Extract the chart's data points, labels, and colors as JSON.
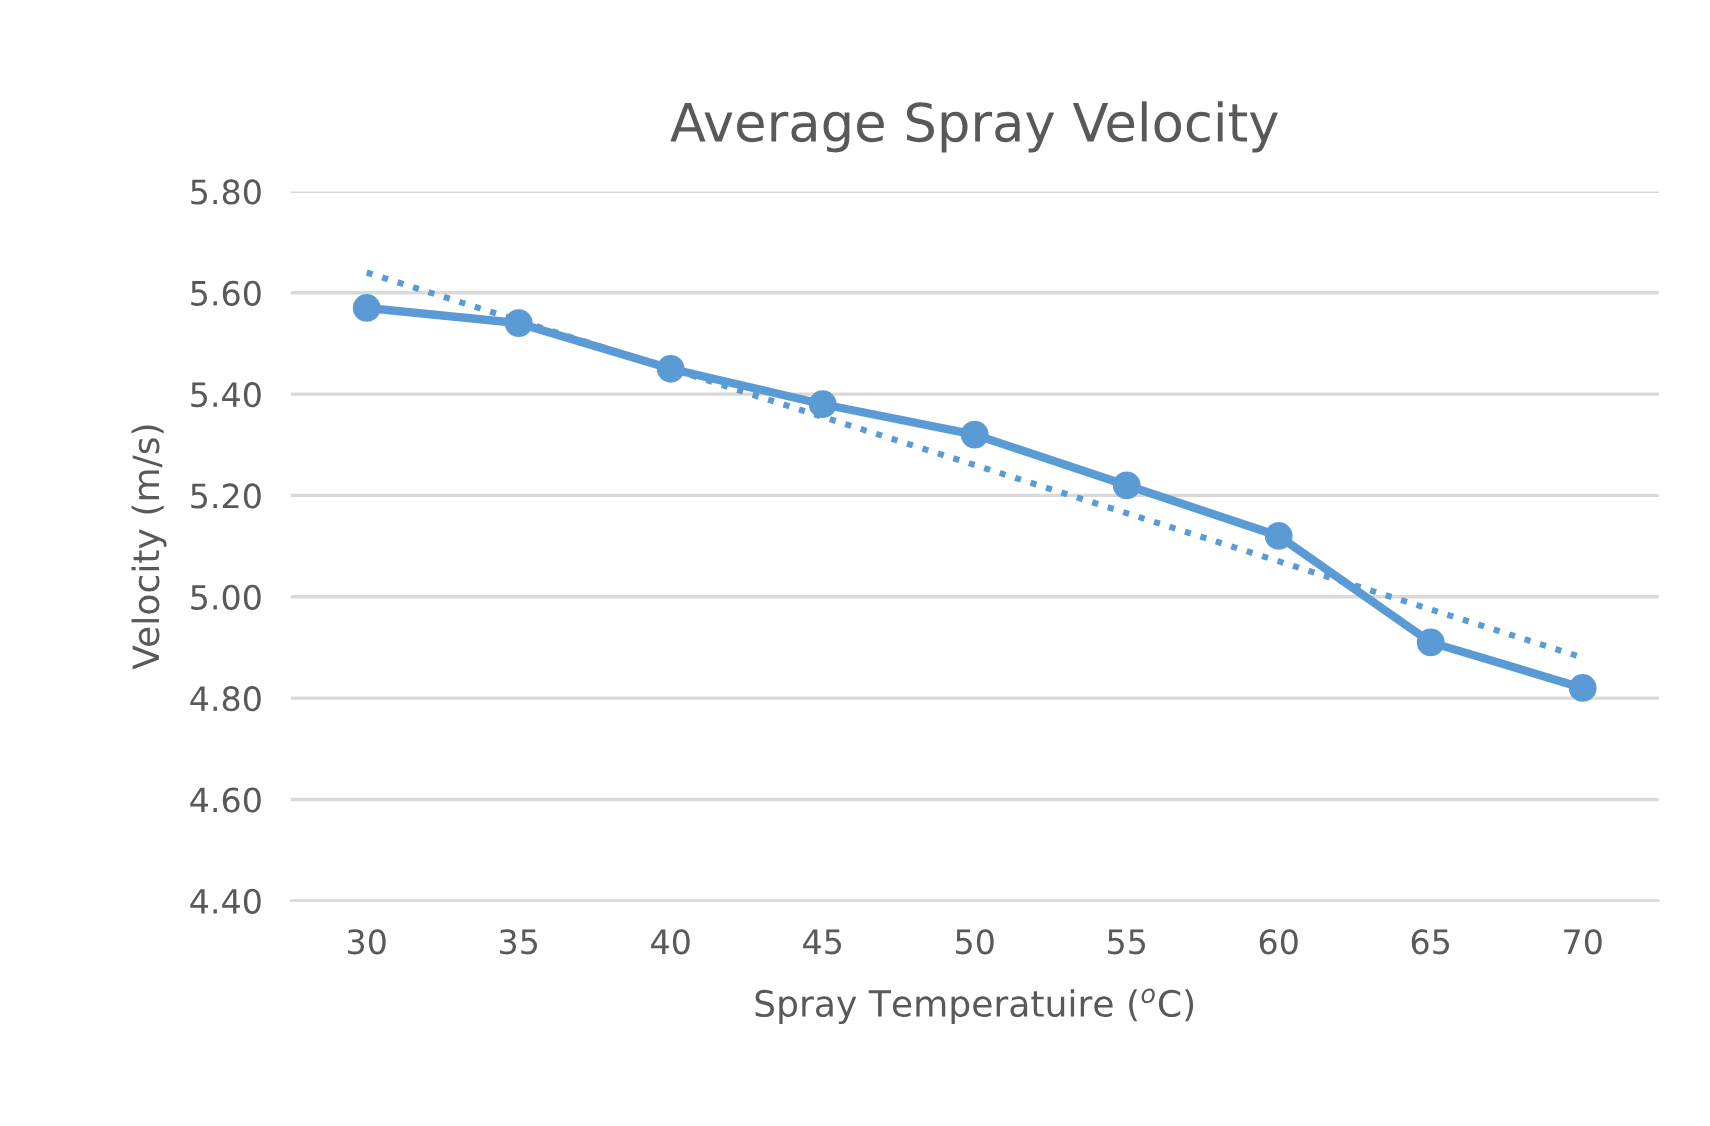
{
  "chart_data": {
    "type": "line",
    "title": "Average Spray Velocity",
    "xlabel": "Spray Temperatuire ($^{o}$C)",
    "ylabel": "Velocity (m/s)",
    "categories": [
      "30",
      "35",
      "40",
      "45",
      "50",
      "55",
      "60",
      "65",
      "70"
    ],
    "series": [
      {
        "color": "#5b9bd5",
        "marker": "circle",
        "line_style": "solid",
        "values": [
          5.57,
          5.54,
          5.45,
          5.38,
          5.32,
          5.22,
          5.12,
          4.91,
          4.82
        ]
      },
      {
        "color": "#5b9bd5",
        "marker": "none",
        "line_style": "dotted",
        "x": [
          "30",
          "70"
        ],
        "values": [
          5.64,
          4.88
        ]
      }
    ],
    "ylim": [
      4.4,
      5.8
    ],
    "yticks": [
      {
        "value": 4.4,
        "label": "4.40"
      },
      {
        "value": 4.6,
        "label": "4.60"
      },
      {
        "value": 4.8,
        "label": "4.80"
      },
      {
        "value": 5.0,
        "label": "5.00"
      },
      {
        "value": 5.2,
        "label": "5.20"
      },
      {
        "value": 5.4,
        "label": "5.40"
      },
      {
        "value": 5.6,
        "label": "5.60"
      },
      {
        "value": 5.8,
        "label": "5.80"
      }
    ],
    "grid": "y",
    "legend": false
  }
}
